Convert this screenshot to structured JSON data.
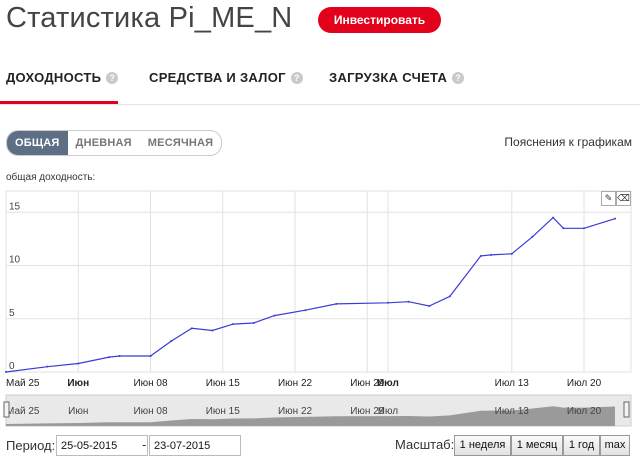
{
  "header": {
    "title": "Статистика Pi_ME_N",
    "invest_label": "Инвестировать"
  },
  "tabs": [
    {
      "label": "ДОХОДНОСТЬ",
      "active": true
    },
    {
      "label": "СРЕДСТВА И ЗАЛОГ",
      "active": false
    },
    {
      "label": "ЗАГРУЗКА СЧЕТА",
      "active": false
    }
  ],
  "help_glyph": "?",
  "segments": [
    {
      "label": "ОБЩАЯ",
      "active": true
    },
    {
      "label": "ДНЕВНАЯ",
      "active": false
    },
    {
      "label": "МЕСЯЧНАЯ",
      "active": false
    }
  ],
  "explain_link": "Пояснения к графикам",
  "chart_title": "общая доходность:",
  "chart_data": {
    "type": "line",
    "series": [
      {
        "color": "#3b3bd6",
        "x": [
          "2015-05-25",
          "2015-05-29",
          "2015-06-01",
          "2015-06-04",
          "2015-06-05",
          "2015-06-08",
          "2015-06-10",
          "2015-06-12",
          "2015-06-14",
          "2015-06-16",
          "2015-06-18",
          "2015-06-20",
          "2015-06-23",
          "2015-06-26",
          "2015-07-01",
          "2015-07-03",
          "2015-07-05",
          "2015-07-07",
          "2015-07-10",
          "2015-07-11",
          "2015-07-13",
          "2015-07-15",
          "2015-07-17",
          "2015-07-18",
          "2015-07-20",
          "2015-07-23"
        ],
        "values": [
          0,
          0.5,
          0.8,
          1.4,
          1.5,
          1.5,
          2.9,
          4.1,
          3.9,
          4.5,
          4.6,
          5.3,
          5.8,
          6.4,
          6.5,
          6.6,
          6.2,
          7.1,
          10.9,
          11.0,
          11.1,
          12.7,
          14.5,
          13.5,
          13.5,
          14.4
        ]
      }
    ],
    "ylim": [
      0,
      17
    ],
    "yticks": [
      "0",
      "5",
      "10",
      "15"
    ],
    "xticks": [
      {
        "label": "Май 25",
        "bold": false,
        "date": "2015-05-25"
      },
      {
        "label": "Июн",
        "bold": true,
        "date": "2015-06-01"
      },
      {
        "label": "Июн 08",
        "bold": false,
        "date": "2015-06-08"
      },
      {
        "label": "Июн 15",
        "bold": false,
        "date": "2015-06-15"
      },
      {
        "label": "Июн 22",
        "bold": false,
        "date": "2015-06-22"
      },
      {
        "label": "Июн 29",
        "bold": false,
        "date": "2015-06-29"
      },
      {
        "label": "Июл",
        "bold": true,
        "date": "2015-07-01"
      },
      {
        "label": "Июл 13",
        "bold": false,
        "date": "2015-07-13"
      },
      {
        "label": "Июл 20",
        "bold": false,
        "date": "2015-07-20"
      }
    ],
    "navigator_labels": [
      {
        "label": "Май 25",
        "date": "2015-05-25"
      },
      {
        "label": "Июн",
        "date": "2015-06-01"
      },
      {
        "label": "Июн 08",
        "date": "2015-06-08"
      },
      {
        "label": "Июн 15",
        "date": "2015-06-15"
      },
      {
        "label": "Июн 22",
        "date": "2015-06-22"
      },
      {
        "label": "Июн 29",
        "date": "2015-06-29"
      },
      {
        "label": "Июл",
        "date": "2015-07-01"
      },
      {
        "label": "Июл 13",
        "date": "2015-07-13"
      },
      {
        "label": "Июл 20",
        "date": "2015-07-20"
      }
    ],
    "grid": true
  },
  "period": {
    "label": "Период:",
    "from": "25-05-2015",
    "separator": "-",
    "to": "23-07-2015"
  },
  "scale": {
    "label": "Масштаб:",
    "buttons": [
      "1 неделя",
      "1 месяц",
      "1 год",
      "max"
    ]
  }
}
